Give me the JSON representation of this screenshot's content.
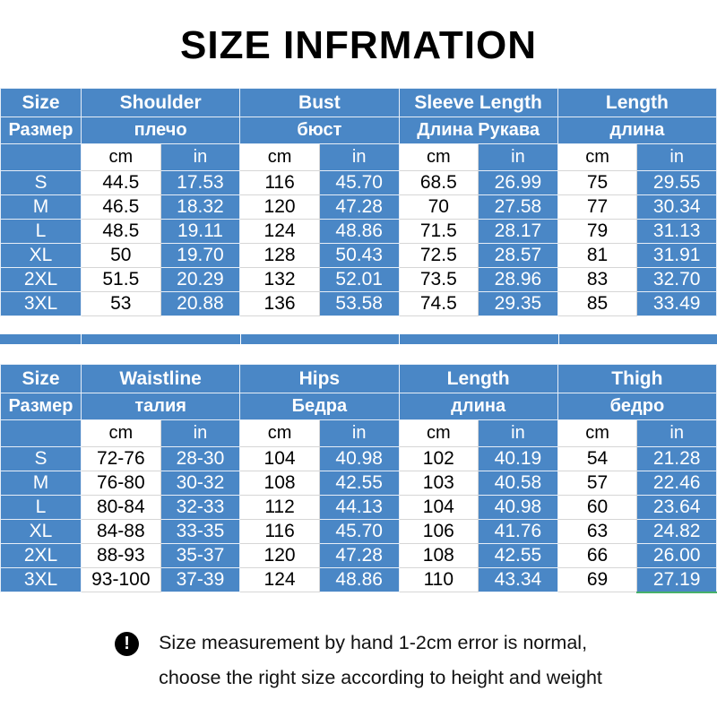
{
  "title": "SIZE INFRMATION",
  "colors": {
    "table_blue": "#4a87c6",
    "cell_white": "#ffffff",
    "title_black": "#000000",
    "green_accent": "#47b06a"
  },
  "units": {
    "cm": "cm",
    "in": "in"
  },
  "tables": [
    {
      "size_header_en": "Size",
      "size_header_ru": "Размер",
      "groups": [
        {
          "en": "Shoulder",
          "ru": "плечо"
        },
        {
          "en": "Bust",
          "ru": "бюст"
        },
        {
          "en": "Sleeve Length",
          "ru": "Длина Рукава"
        },
        {
          "en": "Length",
          "ru": "длина"
        }
      ],
      "rows": [
        {
          "size": "S",
          "values": [
            "44.5",
            "17.53",
            "116",
            "45.70",
            "68.5",
            "26.99",
            "75",
            "29.55"
          ]
        },
        {
          "size": "M",
          "values": [
            "46.5",
            "18.32",
            "120",
            "47.28",
            "70",
            "27.58",
            "77",
            "30.34"
          ]
        },
        {
          "size": "L",
          "values": [
            "48.5",
            "19.11",
            "124",
            "48.86",
            "71.5",
            "28.17",
            "79",
            "31.13"
          ]
        },
        {
          "size": "XL",
          "values": [
            "50",
            "19.70",
            "128",
            "50.43",
            "72.5",
            "28.57",
            "81",
            "31.91"
          ]
        },
        {
          "size": "2XL",
          "values": [
            "51.5",
            "20.29",
            "132",
            "52.01",
            "73.5",
            "28.96",
            "83",
            "32.70"
          ]
        },
        {
          "size": "3XL",
          "values": [
            "53",
            "20.88",
            "136",
            "53.58",
            "74.5",
            "29.35",
            "85",
            "33.49"
          ]
        }
      ]
    },
    {
      "size_header_en": "Size",
      "size_header_ru": "Размер",
      "groups": [
        {
          "en": "Waistline",
          "ru": "талия"
        },
        {
          "en": "Hips",
          "ru": "Бедра"
        },
        {
          "en": "Length",
          "ru": "длина"
        },
        {
          "en": "Thigh",
          "ru": "бедро"
        }
      ],
      "rows": [
        {
          "size": "S",
          "values": [
            "72-76",
            "28-30",
            "104",
            "40.98",
            "102",
            "40.19",
            "54",
            "21.28"
          ]
        },
        {
          "size": "M",
          "values": [
            "76-80",
            "30-32",
            "108",
            "42.55",
            "103",
            "40.58",
            "57",
            "22.46"
          ]
        },
        {
          "size": "L",
          "values": [
            "80-84",
            "32-33",
            "112",
            "44.13",
            "104",
            "40.98",
            "60",
            "23.64"
          ]
        },
        {
          "size": "XL",
          "values": [
            "84-88",
            "33-35",
            "116",
            "45.70",
            "106",
            "41.76",
            "63",
            "24.82"
          ]
        },
        {
          "size": "2XL",
          "values": [
            "88-93",
            "35-37",
            "120",
            "47.28",
            "108",
            "42.55",
            "66",
            "26.00"
          ]
        },
        {
          "size": "3XL",
          "values": [
            "93-100",
            "37-39",
            "124",
            "48.86",
            "110",
            "43.34",
            "69",
            "27.19"
          ]
        }
      ]
    }
  ],
  "note": {
    "icon": "exclamation-icon",
    "icon_glyph": "!",
    "line1": "Size measurement by hand 1-2cm error is normal,",
    "line2": "choose the right size according to height and weight"
  }
}
